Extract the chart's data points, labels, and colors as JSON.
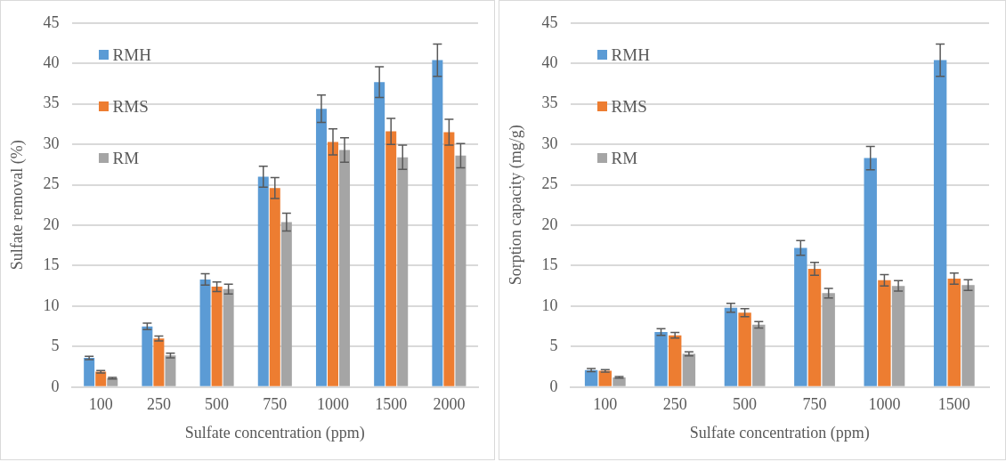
{
  "chart_data": [
    {
      "type": "bar",
      "xlabel": "Sulfate concentration (ppm)",
      "ylabel": "Sulfate removal (%)",
      "categories": [
        "100",
        "250",
        "500",
        "750",
        "1000",
        "1500",
        "2000"
      ],
      "series": [
        {
          "name": "RMH",
          "color": "#5b9bd5",
          "values": [
            3.6,
            7.5,
            13.3,
            26.0,
            34.4,
            37.7,
            40.4
          ],
          "errors": [
            0.2,
            0.4,
            0.7,
            1.3,
            1.7,
            1.9,
            2.0
          ]
        },
        {
          "name": "RMS",
          "color": "#ed7d31",
          "values": [
            1.9,
            6.0,
            12.4,
            24.6,
            30.3,
            31.6,
            31.5
          ],
          "errors": [
            0.15,
            0.3,
            0.6,
            1.3,
            1.6,
            1.6,
            1.6
          ]
        },
        {
          "name": "RM",
          "color": "#a5a5a5",
          "values": [
            1.1,
            3.9,
            12.1,
            20.4,
            29.3,
            28.4,
            28.6
          ],
          "errors": [
            0.1,
            0.3,
            0.6,
            1.1,
            1.5,
            1.5,
            1.5
          ]
        }
      ],
      "ylim": [
        0,
        45
      ],
      "yticks": [
        0,
        5,
        10,
        15,
        20,
        25,
        30,
        35,
        40,
        45
      ],
      "grid": "y",
      "legend": "top left"
    },
    {
      "type": "bar",
      "xlabel": "Sulfate concentration (ppm)",
      "ylabel": "Sorption capacity (mg/g)",
      "categories": [
        "100",
        "250",
        "500",
        "750",
        "1000",
        "1500"
      ],
      "series": [
        {
          "name": "RMH",
          "color": "#5b9bd5",
          "values": [
            2.1,
            6.8,
            9.8,
            17.2,
            28.3,
            40.4
          ],
          "errors": [
            0.2,
            0.4,
            0.55,
            0.9,
            1.45,
            2.0
          ]
        },
        {
          "name": "RMS",
          "color": "#ed7d31",
          "values": [
            2.0,
            6.4,
            9.2,
            14.6,
            13.2,
            13.4
          ],
          "errors": [
            0.15,
            0.35,
            0.5,
            0.8,
            0.7,
            0.7
          ]
        },
        {
          "name": "RM",
          "color": "#a5a5a5",
          "values": [
            1.2,
            4.1,
            7.7,
            11.6,
            12.5,
            12.6
          ],
          "errors": [
            0.1,
            0.25,
            0.4,
            0.6,
            0.65,
            0.65
          ]
        }
      ],
      "ylim": [
        0,
        45
      ],
      "yticks": [
        0,
        5,
        10,
        15,
        20,
        25,
        30,
        35,
        40,
        45
      ],
      "grid": "y",
      "legend": "top left"
    }
  ]
}
